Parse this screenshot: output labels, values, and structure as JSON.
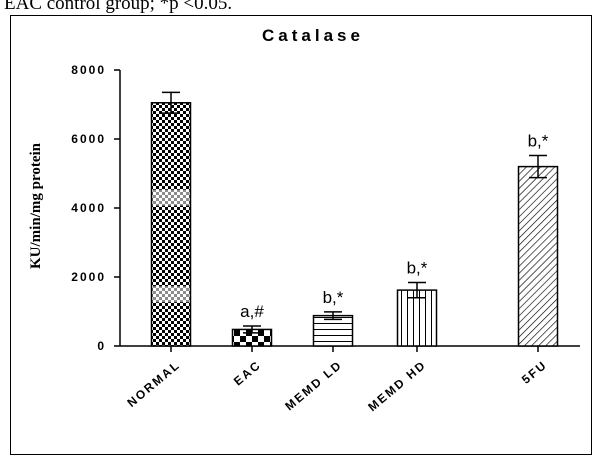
{
  "caption": "EAC control group; *p <0.05.",
  "chart_data": {
    "type": "bar",
    "title": "Catalase",
    "ylabel": "KU/min/mg protein",
    "xlabel": "",
    "ylim": [
      0,
      8000
    ],
    "yticks": [
      0,
      2000,
      4000,
      6000,
      8000
    ],
    "ytick_labels": [
      "0",
      "2000",
      "4000",
      "6000",
      "8000"
    ],
    "categories": [
      "NORMAL",
      "EAC",
      "MEMD LD",
      "MEMD HD",
      "5FU"
    ],
    "values": [
      7050,
      480,
      880,
      1620,
      5200
    ],
    "errors": [
      300,
      100,
      110,
      220,
      320
    ],
    "annotations": [
      "",
      "a,#",
      "b,*",
      "b,*",
      "b,*"
    ],
    "fill_patterns": [
      "checker",
      "checker-large",
      "horizontal",
      "vertical",
      "diagonal"
    ],
    "grid": false,
    "legend": "none"
  }
}
